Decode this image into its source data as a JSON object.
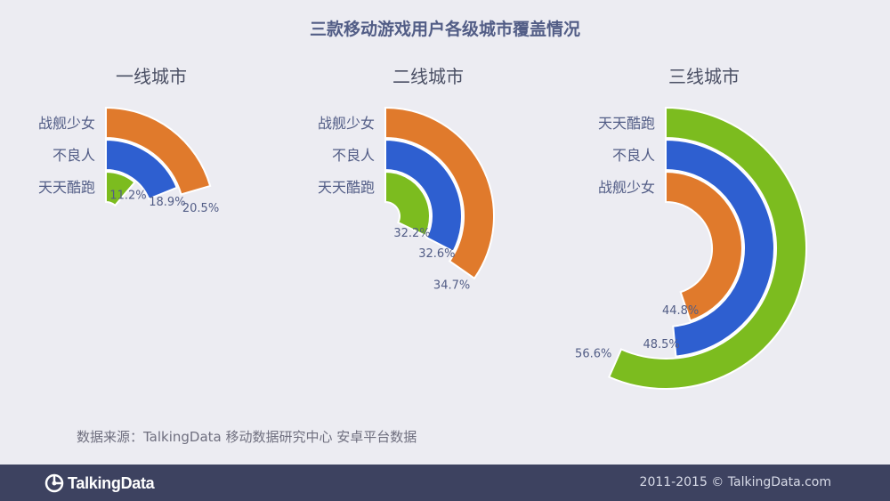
{
  "title": "三款移动游戏用户各级城市覆盖情况",
  "source": "数据来源：TalkingData 移动数据研究中心 安卓平台数据",
  "footer": {
    "logo": "TalkingData",
    "copyright": "2011-2015 © TalkingData.com"
  },
  "colors": {
    "战舰少女": "#e07a2c",
    "不良人": "#2e5fd0",
    "天天酷跑": "#7cbc1f",
    "label": "#525d86"
  },
  "chart_data": [
    {
      "type": "radial-bar",
      "title": "一线城市",
      "max": 100,
      "series": [
        {
          "name": "战舰少女",
          "value": 20.5,
          "label": "20.5%"
        },
        {
          "name": "不良人",
          "value": 18.9,
          "label": "18.9%"
        },
        {
          "name": "天天酷跑",
          "value": 11.2,
          "label": "11.2%"
        }
      ]
    },
    {
      "type": "radial-bar",
      "title": "二线城市",
      "max": 100,
      "series": [
        {
          "name": "战舰少女",
          "value": 34.7,
          "label": "34.7%"
        },
        {
          "name": "不良人",
          "value": 32.6,
          "label": "32.6%"
        },
        {
          "name": "天天酷跑",
          "value": 32.2,
          "label": "32.2%"
        }
      ]
    },
    {
      "type": "radial-bar",
      "title": "三线城市",
      "max": 100,
      "series": [
        {
          "name": "天天酷跑",
          "value": 56.6,
          "label": "56.6%"
        },
        {
          "name": "不良人",
          "value": 48.5,
          "label": "48.5%"
        },
        {
          "name": "战舰少女",
          "value": 44.8,
          "label": "44.8%"
        }
      ]
    }
  ]
}
